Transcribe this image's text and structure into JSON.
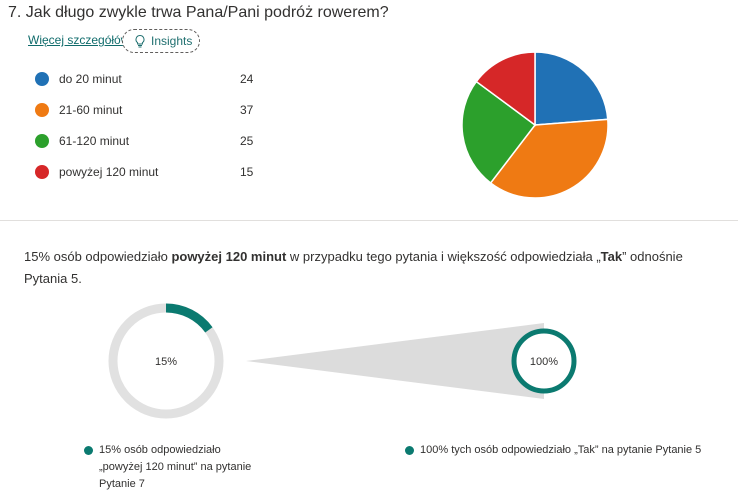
{
  "question": {
    "number": "7.",
    "text": "Jak długo zwykle trwa Pana/Pani podróż rowerem?"
  },
  "more_details_link": "Więcej szczegółów",
  "insights_button": {
    "label": "Insights",
    "icon": "lightbulb-icon"
  },
  "chart_data": [
    {
      "type": "pie",
      "categories": [
        "do 20 minut",
        "21-60 minut",
        "61-120 minut",
        "powyżej 120 minut"
      ],
      "values": [
        24,
        37,
        25,
        15
      ],
      "colors": [
        "#2071b5",
        "#ef7a13",
        "#2ca02c",
        "#d62728"
      ]
    },
    {
      "type": "donut",
      "label": "15%",
      "value": 15,
      "color": "#0b7a70",
      "track_color": "#e1e1e1"
    },
    {
      "type": "donut",
      "label": "100%",
      "value": 100,
      "color": "#0b7a70"
    }
  ],
  "legend": [
    {
      "label": "do 20 minut",
      "count": "24",
      "color": "#2071b5"
    },
    {
      "label": "21-60 minut",
      "count": "37",
      "color": "#ef7a13"
    },
    {
      "label": "61-120 minut",
      "count": "25",
      "color": "#2ca02c"
    },
    {
      "label": "powyżej 120 minut",
      "count": "15",
      "color": "#d62728"
    }
  ],
  "insight": {
    "part1": "15% osób odpowiedziało ",
    "bold1": "powyżej 120 minut",
    "part2": " w przypadku tego pytania i większość odpowiedziała „",
    "bold2": "Tak",
    "part3": "” odnośnie Pytania 5."
  },
  "captions": {
    "left": "15% osób odpowiedziało „powyżej 120 minut” na pytanie Pytanie 7",
    "right": "100% tych osób odpowiedziało „Tak” na pytanie Pytanie 5"
  }
}
